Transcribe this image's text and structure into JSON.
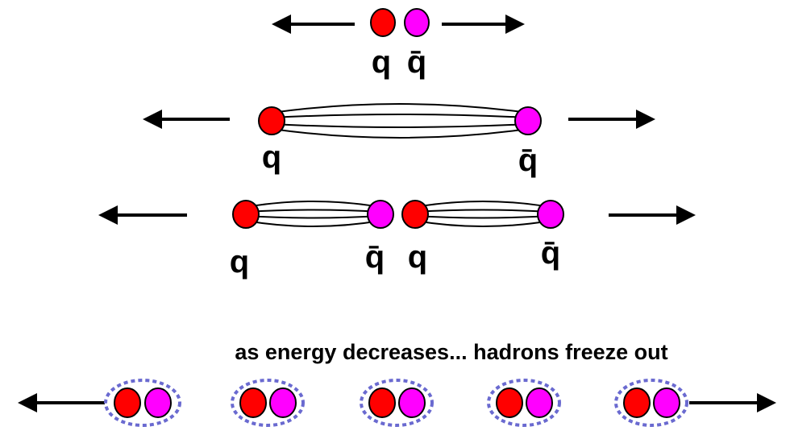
{
  "rows": [
    {
      "labels": [
        "q",
        "q̄"
      ]
    },
    {
      "labels": [
        "q",
        "q̄"
      ]
    },
    {
      "labels": [
        "q",
        "q̄",
        "q",
        "q̄"
      ]
    }
  ],
  "caption": "as energy decreases... hadrons freeze out"
}
